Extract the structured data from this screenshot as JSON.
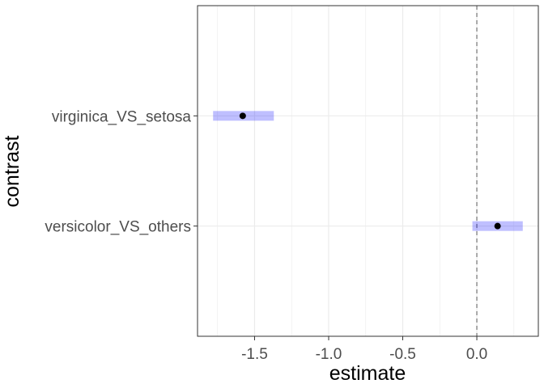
{
  "chart_data": {
    "type": "scatter",
    "xlabel": "estimate",
    "ylabel": "contrast",
    "categories": [
      "virginica_VS_setosa",
      "versicolor_VS_others"
    ],
    "points": [
      {
        "category": "virginica_VS_setosa",
        "estimate": -1.58,
        "low": -1.78,
        "high": -1.37
      },
      {
        "category": "versicolor_VS_others",
        "estimate": 0.14,
        "low": -0.03,
        "high": 0.31
      }
    ],
    "x_ticks": [
      -1.5,
      -1.0,
      -0.5,
      0.0
    ],
    "x_tick_labels": [
      "-1.5",
      "-1.0",
      "-0.5",
      "0.0"
    ],
    "xlim": [
      -1.885,
      0.415
    ],
    "reference_line": 0,
    "grid": true,
    "colors": {
      "interval": "#0000ff",
      "point": "#000000",
      "grid": "#ebebeb",
      "panel_border": "#333333",
      "reference_line": "#7f7f7f"
    }
  }
}
